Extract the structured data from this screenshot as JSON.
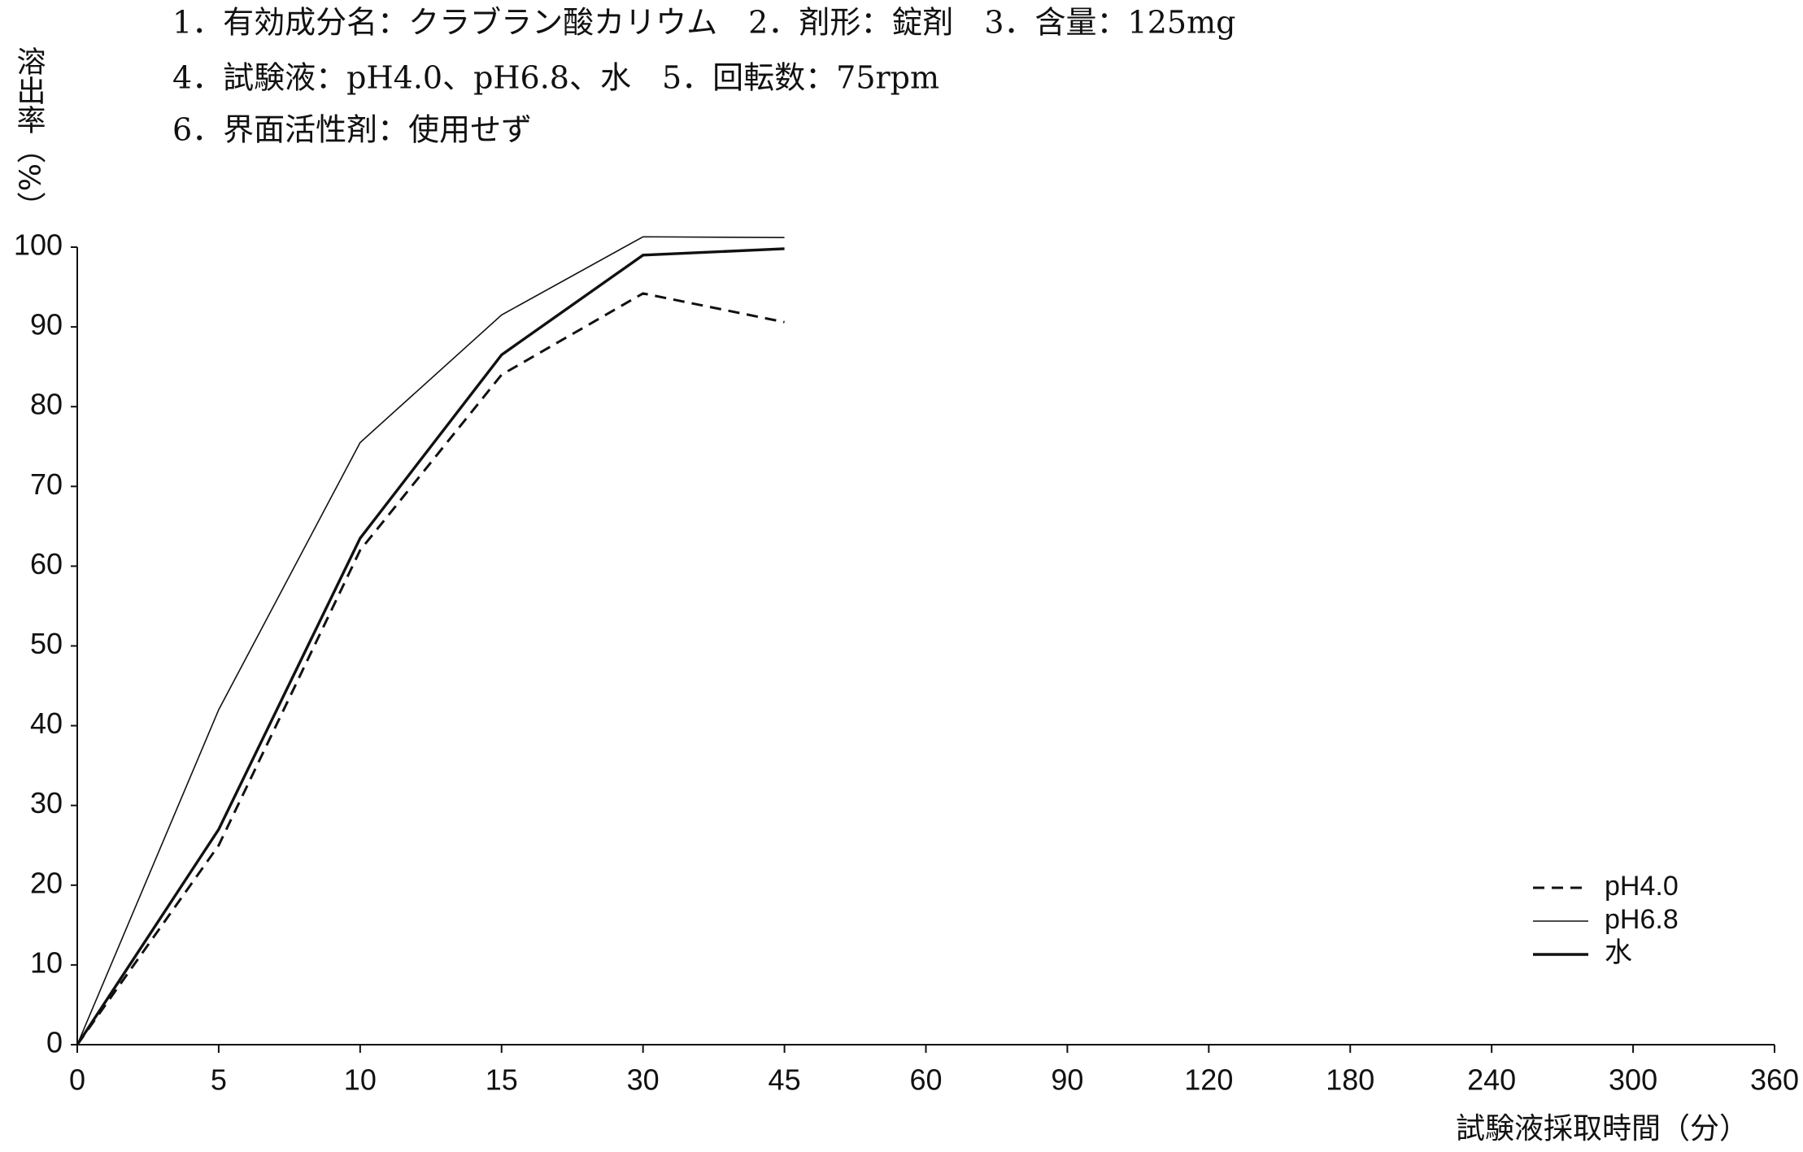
{
  "chart_data": {
    "type": "line",
    "title_lines": [
      "1．有効成分名：クラブラン酸カリウム　2．剤形：錠剤　3．含量：125mg",
      "4．試験液：pH4.0、pH6.8、水　5．回転数：75rpm",
      "6．界面活性剤：使用せず"
    ],
    "y_label": "溶出率（%）",
    "x_label": "試験液採取時間（分）",
    "categories": [
      "0",
      "5",
      "10",
      "15",
      "30",
      "45",
      "60",
      "90",
      "120",
      "180",
      "240",
      "300",
      "360"
    ],
    "ylim": [
      0,
      100
    ],
    "yticks": [
      0,
      10,
      20,
      30,
      40,
      50,
      60,
      70,
      80,
      90,
      100
    ],
    "series": [
      {
        "name": "pH4.0",
        "color": "#111111",
        "line_style": "dashed",
        "values": [
          0,
          25,
          62,
          84,
          94.2,
          90.6,
          null,
          null,
          null,
          null,
          null,
          null,
          null
        ]
      },
      {
        "name": "pH6.8",
        "color": "#111111",
        "line_style": "thin",
        "values": [
          0,
          42,
          75.5,
          91.5,
          101.3,
          101.2,
          null,
          null,
          null,
          null,
          null,
          null,
          null
        ]
      },
      {
        "name": "水",
        "color": "#111111",
        "line_style": "thick",
        "values": [
          0,
          27,
          63.5,
          86.5,
          99,
          99.8,
          null,
          null,
          null,
          null,
          null,
          null,
          null
        ]
      }
    ],
    "legend": "lower right"
  }
}
